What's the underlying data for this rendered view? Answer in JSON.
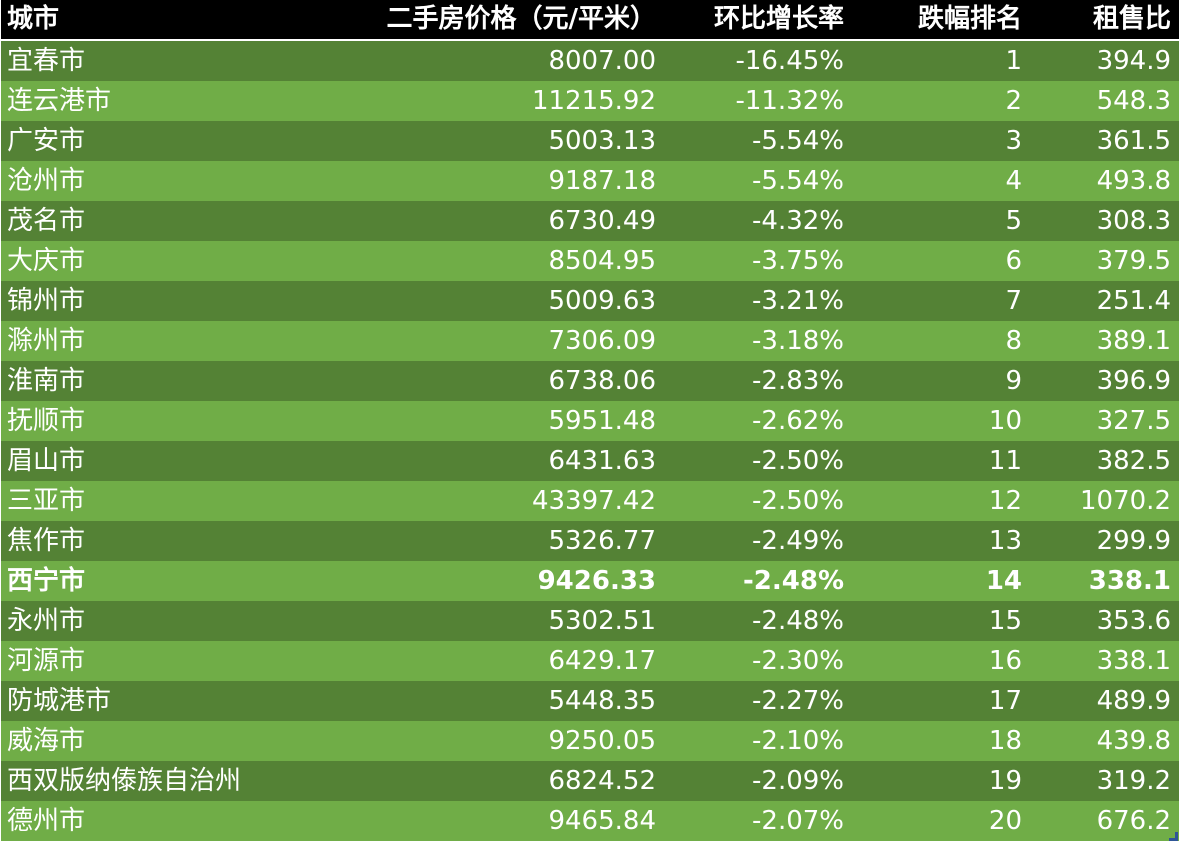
{
  "table": {
    "headers": [
      "城市",
      "二手房价格（元/平米）",
      "环比增长率",
      "跌幅排名",
      "租售比"
    ],
    "rows": [
      [
        "宜春市",
        "8007.00",
        "-16.45%",
        "1",
        "394.9"
      ],
      [
        "连云港市",
        "11215.92",
        "-11.32%",
        "2",
        "548.3"
      ],
      [
        "广安市",
        "5003.13",
        "-5.54%",
        "3",
        "361.5"
      ],
      [
        "沧州市",
        "9187.18",
        "-5.54%",
        "4",
        "493.8"
      ],
      [
        "茂名市",
        "6730.49",
        "-4.32%",
        "5",
        "308.3"
      ],
      [
        "大庆市",
        "8504.95",
        "-3.75%",
        "6",
        "379.5"
      ],
      [
        "锦州市",
        "5009.63",
        "-3.21%",
        "7",
        "251.4"
      ],
      [
        "滁州市",
        "7306.09",
        "-3.18%",
        "8",
        "389.1"
      ],
      [
        "淮南市",
        "6738.06",
        "-2.83%",
        "9",
        "396.9"
      ],
      [
        "抚顺市",
        "5951.48",
        "-2.62%",
        "10",
        "327.5"
      ],
      [
        "眉山市",
        "6431.63",
        "-2.50%",
        "11",
        "382.5"
      ],
      [
        "三亚市",
        "43397.42",
        "-2.50%",
        "12",
        "1070.2"
      ],
      [
        "焦作市",
        "5326.77",
        "-2.49%",
        "13",
        "299.9"
      ],
      [
        "西宁市",
        "9426.33",
        "-2.48%",
        "14",
        "338.1"
      ],
      [
        "永州市",
        "5302.51",
        "-2.48%",
        "15",
        "353.6"
      ],
      [
        "河源市",
        "6429.17",
        "-2.30%",
        "16",
        "338.1"
      ],
      [
        "防城港市",
        "5448.35",
        "-2.27%",
        "17",
        "489.9"
      ],
      [
        "威海市",
        "9250.05",
        "-2.10%",
        "18",
        "439.8"
      ],
      [
        "西双版纳傣族自治州",
        "6824.52",
        "-2.09%",
        "19",
        "319.2"
      ],
      [
        "德州市",
        "9465.84",
        "-2.07%",
        "20",
        "676.2"
      ]
    ],
    "highlight_row_index": 13
  },
  "colors": {
    "header_bg": "#000000",
    "row_dark": "#548235",
    "row_light": "#70ad47",
    "text": "#ffffff"
  }
}
